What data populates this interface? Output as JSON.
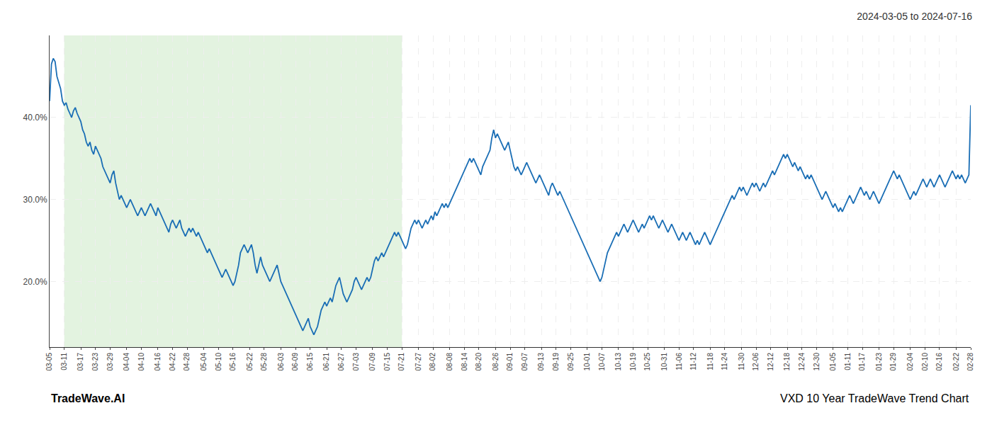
{
  "chart_data": {
    "type": "line",
    "title": "2024-03-05 to 2024-07-16",
    "annotations": [
      "TradeWave.AI",
      "VXD 10 Year TradeWave Trend Chart"
    ],
    "color": "#1a6eb5",
    "grid": true,
    "ylim": [
      12,
      50
    ],
    "yticks": [
      {
        "value": 20,
        "label": "20.0%"
      },
      {
        "value": 30,
        "label": "30.0%"
      },
      {
        "value": 40,
        "label": "40.0%"
      }
    ],
    "shade": {
      "start": "03-11",
      "end": "07-21",
      "color": "#d4ecd0"
    },
    "categories": [
      "03-05",
      null,
      null,
      null,
      null,
      null,
      null,
      null,
      "03-11",
      null,
      null,
      null,
      null,
      null,
      null,
      null,
      null,
      "03-17",
      null,
      null,
      null,
      null,
      null,
      null,
      null,
      "03-23",
      null,
      null,
      null,
      null,
      null,
      null,
      null,
      "03-29",
      null,
      null,
      null,
      null,
      null,
      null,
      null,
      null,
      "04-04",
      null,
      null,
      null,
      null,
      null,
      null,
      null,
      "04-10",
      null,
      null,
      null,
      null,
      null,
      null,
      null,
      null,
      "04-16",
      null,
      null,
      null,
      null,
      null,
      null,
      null,
      "04-22",
      null,
      null,
      null,
      null,
      null,
      null,
      null,
      "04-28",
      null,
      null,
      null,
      null,
      null,
      null,
      null,
      null,
      "05-04",
      null,
      null,
      null,
      null,
      null,
      null,
      null,
      "05-10",
      null,
      null,
      null,
      null,
      null,
      null,
      null,
      "05-16",
      null,
      null,
      null,
      null,
      null,
      null,
      null,
      null,
      "05-22",
      null,
      null,
      null,
      null,
      null,
      null,
      null,
      "05-28",
      null,
      null,
      null,
      null,
      null,
      null,
      null,
      null,
      "06-03",
      null,
      null,
      null,
      null,
      null,
      null,
      null,
      "06-09",
      null,
      null,
      null,
      null,
      null,
      null,
      null,
      "06-15",
      null,
      null,
      null,
      null,
      null,
      null,
      null,
      null,
      "06-21",
      null,
      null,
      null,
      null,
      null,
      null,
      null,
      "06-27",
      null,
      null,
      null,
      null,
      null,
      null,
      null,
      "07-03",
      null,
      null,
      null,
      null,
      null,
      null,
      null,
      null,
      "07-09",
      null,
      null,
      null,
      null,
      null,
      null,
      null,
      "07-15",
      null,
      null,
      null,
      null,
      null,
      null,
      null,
      "07-21",
      null,
      null,
      null,
      null,
      null,
      null,
      null,
      null,
      "07-27",
      null,
      null,
      null,
      null,
      null,
      null,
      null,
      "08-02",
      null,
      null,
      null,
      null,
      null,
      null,
      null,
      null,
      "08-08",
      null,
      null,
      null,
      null,
      null,
      null,
      null,
      "08-14",
      null,
      null,
      null,
      null,
      null,
      null,
      null,
      "08-20",
      null,
      null,
      null,
      null,
      null,
      null,
      null,
      null,
      "08-26",
      null,
      null,
      null,
      null,
      null,
      null,
      null,
      "09-01",
      null,
      null,
      null,
      null,
      null,
      null,
      null,
      "09-07",
      null,
      null,
      null,
      null,
      null,
      null,
      null,
      null,
      "09-13",
      null,
      null,
      null,
      null,
      null,
      null,
      null,
      "09-19",
      null,
      null,
      null,
      null,
      null,
      null,
      null,
      "09-25",
      null,
      null,
      null,
      null,
      null,
      null,
      null,
      null,
      "10-01",
      null,
      null,
      null,
      null,
      null,
      null,
      null,
      "10-07",
      null,
      null,
      null,
      null,
      null,
      null,
      null,
      null,
      "10-13",
      null,
      null,
      null,
      null,
      null,
      null,
      null,
      "10-19",
      null,
      null,
      null,
      null,
      null,
      null,
      null,
      "10-25",
      null,
      null,
      null,
      null,
      null,
      null,
      null,
      null,
      "10-31",
      null,
      null,
      null,
      null,
      null,
      null,
      null,
      "11-06",
      null,
      null,
      null,
      null,
      null,
      null,
      null,
      "11-12",
      null,
      null,
      null,
      null,
      null,
      null,
      null,
      null,
      "11-18",
      null,
      null,
      null,
      null,
      null,
      null,
      null,
      "11-24",
      null,
      null,
      null,
      null,
      null,
      null,
      null,
      null,
      "11-30",
      null,
      null,
      null,
      null,
      null,
      null,
      null,
      "12-06",
      null,
      null,
      null,
      null,
      null,
      null,
      null,
      "12-12",
      null,
      null,
      null,
      null,
      null,
      null,
      null,
      null,
      "12-18",
      null,
      null,
      null,
      null,
      null,
      null,
      null,
      "12-24",
      null,
      null,
      null,
      null,
      null,
      null,
      null,
      "12-30",
      null,
      null,
      null,
      null,
      null,
      null,
      null,
      null,
      "01-05",
      null,
      null,
      null,
      null,
      null,
      null,
      null,
      "01-11",
      null,
      null,
      null,
      null,
      null,
      null,
      null,
      "01-17",
      null,
      null,
      null,
      null,
      null,
      null,
      null,
      null,
      "01-23",
      null,
      null,
      null,
      null,
      null,
      null,
      null,
      "01-29",
      null,
      null,
      null,
      null,
      null,
      null,
      null,
      null,
      "02-04",
      null,
      null,
      null,
      null,
      null,
      null,
      null,
      "02-10",
      null,
      null,
      null,
      null,
      null,
      null,
      null,
      "02-16",
      null,
      null,
      null,
      null,
      null,
      null,
      null,
      null,
      "02-22",
      null,
      null,
      null,
      null,
      null,
      null,
      null,
      "02-28"
    ],
    "values": [
      42.0,
      46.5,
      47.2,
      46.8,
      45.0,
      44.2,
      43.5,
      42.0,
      41.5,
      41.8,
      41.0,
      40.5,
      40.0,
      40.8,
      41.2,
      40.5,
      40.0,
      39.5,
      38.5,
      38.0,
      37.0,
      36.5,
      37.0,
      36.0,
      35.5,
      36.5,
      36.0,
      35.5,
      35.0,
      34.0,
      33.5,
      33.0,
      32.5,
      32.0,
      33.0,
      33.5,
      32.0,
      31.0,
      30.0,
      30.5,
      30.0,
      29.5,
      29.0,
      29.5,
      30.0,
      29.5,
      29.0,
      28.5,
      28.0,
      28.5,
      29.0,
      28.5,
      28.0,
      28.5,
      29.0,
      29.5,
      29.0,
      28.5,
      28.0,
      29.0,
      28.5,
      28.0,
      27.5,
      27.0,
      26.5,
      26.0,
      27.0,
      27.5,
      27.0,
      26.5,
      27.0,
      27.5,
      26.5,
      26.0,
      25.5,
      26.0,
      26.5,
      26.0,
      26.5,
      26.0,
      25.5,
      26.0,
      25.5,
      25.0,
      24.5,
      24.0,
      23.5,
      24.0,
      23.5,
      23.0,
      22.5,
      22.0,
      21.5,
      21.0,
      20.5,
      21.0,
      21.5,
      21.0,
      20.5,
      20.0,
      19.5,
      20.0,
      21.0,
      22.0,
      23.5,
      24.0,
      24.5,
      24.0,
      23.5,
      24.0,
      24.5,
      23.5,
      22.0,
      21.0,
      22.0,
      23.0,
      22.0,
      21.5,
      21.0,
      20.5,
      20.0,
      20.5,
      21.0,
      21.5,
      22.0,
      21.0,
      20.0,
      19.5,
      19.0,
      18.5,
      18.0,
      17.5,
      17.0,
      16.5,
      16.0,
      15.5,
      15.0,
      14.5,
      14.0,
      14.5,
      15.0,
      15.5,
      14.5,
      14.0,
      13.5,
      14.0,
      14.5,
      15.5,
      16.5,
      17.0,
      17.5,
      17.0,
      17.5,
      18.0,
      17.5,
      18.5,
      19.5,
      20.0,
      20.5,
      19.5,
      18.5,
      18.0,
      17.5,
      18.0,
      18.5,
      19.0,
      20.0,
      20.5,
      20.0,
      19.5,
      19.0,
      19.5,
      20.0,
      20.5,
      20.0,
      20.5,
      21.5,
      22.5,
      23.0,
      22.5,
      23.0,
      23.5,
      23.0,
      23.5,
      24.0,
      24.5,
      25.0,
      25.5,
      26.0,
      25.5,
      26.0,
      25.5,
      25.0,
      24.5,
      24.0,
      24.5,
      25.5,
      26.5,
      27.0,
      27.5,
      27.0,
      27.5,
      27.0,
      26.5,
      27.0,
      27.5,
      27.0,
      27.5,
      28.0,
      27.5,
      28.5,
      28.0,
      28.5,
      29.0,
      29.5,
      29.0,
      29.5,
      29.0,
      29.5,
      30.0,
      30.5,
      31.0,
      31.5,
      32.0,
      32.5,
      33.0,
      33.5,
      34.0,
      34.5,
      35.0,
      34.5,
      35.0,
      34.5,
      34.0,
      33.5,
      33.0,
      34.0,
      34.5,
      35.0,
      35.5,
      36.0,
      37.5,
      38.5,
      37.5,
      38.0,
      37.5,
      37.0,
      36.5,
      36.0,
      36.5,
      37.0,
      36.0,
      35.0,
      34.0,
      33.5,
      34.0,
      33.5,
      33.0,
      33.5,
      34.0,
      34.5,
      34.0,
      33.5,
      33.0,
      32.5,
      32.0,
      32.5,
      33.0,
      32.5,
      32.0,
      31.5,
      31.0,
      30.5,
      31.5,
      32.0,
      31.5,
      31.0,
      30.5,
      31.0,
      30.5,
      30.0,
      29.5,
      29.0,
      28.5,
      28.0,
      27.5,
      27.0,
      26.5,
      26.0,
      25.5,
      25.0,
      24.5,
      24.0,
      23.5,
      23.0,
      22.5,
      22.0,
      21.5,
      21.0,
      20.5,
      20.0,
      20.5,
      21.5,
      22.5,
      23.5,
      24.0,
      24.5,
      25.0,
      25.5,
      26.0,
      25.5,
      26.0,
      26.5,
      27.0,
      26.5,
      26.0,
      26.5,
      27.0,
      27.5,
      27.0,
      26.5,
      26.0,
      26.5,
      27.0,
      26.5,
      27.0,
      27.5,
      28.0,
      27.5,
      28.0,
      27.5,
      27.0,
      26.5,
      27.0,
      27.5,
      27.0,
      26.5,
      26.0,
      26.5,
      27.0,
      26.5,
      26.0,
      25.5,
      25.0,
      25.5,
      26.0,
      25.5,
      25.0,
      25.5,
      26.0,
      25.5,
      25.0,
      24.5,
      25.0,
      24.5,
      25.0,
      25.5,
      26.0,
      25.5,
      25.0,
      24.5,
      25.0,
      25.5,
      26.0,
      26.5,
      27.0,
      27.5,
      28.0,
      28.5,
      29.0,
      29.5,
      30.0,
      30.5,
      30.0,
      30.5,
      31.0,
      31.5,
      31.0,
      31.5,
      31.0,
      30.5,
      31.0,
      31.5,
      32.0,
      31.5,
      32.0,
      31.5,
      31.0,
      31.5,
      32.0,
      31.5,
      32.0,
      32.5,
      33.0,
      33.5,
      33.0,
      33.5,
      34.0,
      34.5,
      35.0,
      35.5,
      35.0,
      35.5,
      35.0,
      34.5,
      34.0,
      34.5,
      34.0,
      33.5,
      34.0,
      33.5,
      33.0,
      32.5,
      33.0,
      32.5,
      33.0,
      32.5,
      32.0,
      31.5,
      31.0,
      30.5,
      30.0,
      30.5,
      31.0,
      30.5,
      30.0,
      29.5,
      29.0,
      29.5,
      29.0,
      28.5,
      29.0,
      28.5,
      29.0,
      29.5,
      30.0,
      30.5,
      30.0,
      29.5,
      30.0,
      30.5,
      31.0,
      31.5,
      31.0,
      30.5,
      31.0,
      30.5,
      30.0,
      30.5,
      31.0,
      30.5,
      30.0,
      29.5,
      30.0,
      30.5,
      31.0,
      31.5,
      32.0,
      32.5,
      33.0,
      33.5,
      33.0,
      32.5,
      33.0,
      32.5,
      32.0,
      31.5,
      31.0,
      30.5,
      30.0,
      30.5,
      31.0,
      30.5,
      31.0,
      31.5,
      32.0,
      32.5,
      32.0,
      31.5,
      32.0,
      32.5,
      32.0,
      31.5,
      32.0,
      32.5,
      33.0,
      32.5,
      32.0,
      31.5,
      32.0,
      32.5,
      33.0,
      33.5,
      33.0,
      32.5,
      33.0,
      32.5,
      33.0,
      32.5,
      32.0,
      32.5,
      33.0,
      41.5
    ]
  }
}
